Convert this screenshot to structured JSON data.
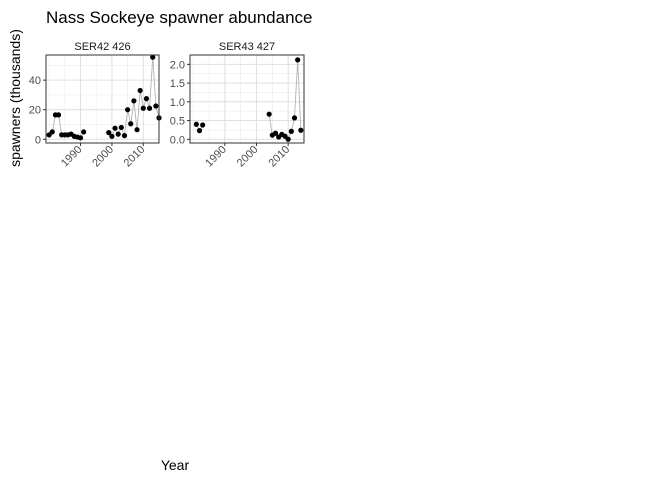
{
  "chart_data": {
    "type": "line",
    "title": "Nass Sockeye spawner abundance",
    "xlabel": "Year",
    "ylabel": "spawners (thousands)",
    "grid": true,
    "legend": "none",
    "colors": {
      "point": "#000000",
      "line": "#b3b3b3",
      "grid": "#ebebeb",
      "border": "#333333"
    },
    "panels": [
      {
        "name": "SER42 426",
        "xlim": [
          1979,
          2015
        ],
        "ylim": [
          -2.5,
          57
        ],
        "x_ticks": [
          1990,
          2000,
          2010
        ],
        "x_tick_labels": [
          "1990",
          "2000",
          "2010"
        ],
        "y_ticks": [
          0,
          20,
          40
        ],
        "y_tick_labels": [
          "0",
          "20",
          "40"
        ],
        "points": [
          [
            1980,
            3
          ],
          [
            1981,
            5
          ],
          [
            1982,
            16.5
          ],
          [
            1983,
            16.5
          ],
          [
            1984,
            3
          ],
          [
            1985,
            3
          ],
          [
            1986,
            3
          ],
          [
            1987,
            3.5
          ],
          [
            1988,
            2
          ],
          [
            1989,
            1.5
          ],
          [
            1990,
            1
          ],
          [
            1991,
            5
          ],
          [
            1999,
            4.5
          ],
          [
            2000,
            2
          ],
          [
            2001,
            7.5
          ],
          [
            2002,
            3.5
          ],
          [
            2003,
            8
          ],
          [
            2004,
            2.5
          ],
          [
            2005,
            20
          ],
          [
            2006,
            10.5
          ],
          [
            2007,
            26
          ],
          [
            2008,
            6.5
          ],
          [
            2009,
            33
          ],
          [
            2010,
            21
          ],
          [
            2011,
            27.5
          ],
          [
            2012,
            21
          ],
          [
            2013,
            55.5
          ],
          [
            2014,
            22.5
          ],
          [
            2015,
            14.5
          ]
        ]
      },
      {
        "name": "SER43 427",
        "xlim": [
          1979,
          2015
        ],
        "ylim": [
          -0.1,
          2.25
        ],
        "x_ticks": [
          1990,
          2000,
          2010
        ],
        "x_tick_labels": [
          "1990",
          "2000",
          "2010"
        ],
        "y_ticks": [
          0,
          0.5,
          1,
          1.5,
          2
        ],
        "y_tick_labels": [
          "0.0",
          "0.5",
          "1.0",
          "1.5",
          "2.0"
        ],
        "points": [
          [
            1981,
            0.4
          ],
          [
            1982,
            0.23
          ],
          [
            1983,
            0.38
          ],
          [
            2004,
            0.67
          ],
          [
            2005,
            0.11
          ],
          [
            2006,
            0.16
          ],
          [
            2007,
            0.06
          ],
          [
            2008,
            0.13
          ],
          [
            2009,
            0.08
          ],
          [
            2010,
            0.0
          ],
          [
            2011,
            0.21
          ],
          [
            2012,
            0.57
          ],
          [
            2013,
            2.12
          ],
          [
            2014,
            0.24
          ]
        ]
      }
    ]
  }
}
